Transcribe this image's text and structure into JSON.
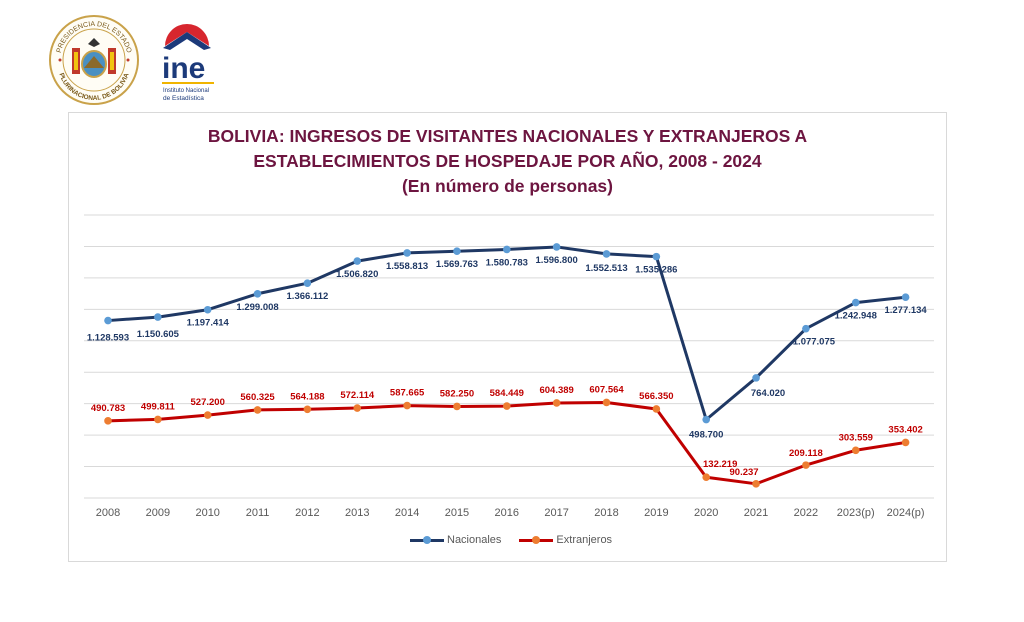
{
  "header": {
    "seal_top_text": "PRESIDENCIA DEL ESTADO",
    "seal_bottom_text": "PLURINACIONAL DE BOLIVIA",
    "ine_logo_text": "ine",
    "ine_subtitle_1": "Instituto Nacional",
    "ine_subtitle_2": "de Estadística"
  },
  "colors": {
    "title": "#6d1540",
    "nacionales_line": "#1f3864",
    "nacionales_marker": "#5b9bd5",
    "extranjeros_line": "#c00000",
    "extranjeros_marker": "#ed7d31",
    "grid": "#d9d9d9"
  },
  "chart_data": {
    "type": "line",
    "title_line1": "BOLIVIA: INGRESOS DE VISITANTES NACIONALES Y EXTRANJEROS A",
    "title_line2": "ESTABLECIMIENTOS DE HOSPEDAJE POR AÑO, 2008 - 2024",
    "subtitle": "(En número de personas)",
    "xlabel": "",
    "ylabel": "",
    "ylim": [
      0,
      1800000
    ],
    "y_grid_step": 200000,
    "grid": true,
    "y_axis_labels_visible": false,
    "legend_position": "bottom",
    "categories": [
      "2008",
      "2009",
      "2010",
      "2011",
      "2012",
      "2013",
      "2014",
      "2015",
      "2016",
      "2017",
      "2018",
      "2019",
      "2020",
      "2021",
      "2022",
      "2023(p)",
      "2024(p)"
    ],
    "series": [
      {
        "name": "Nacionales",
        "values": [
          1128593,
          1150605,
          1197414,
          1299008,
          1366112,
          1506820,
          1558813,
          1569763,
          1580783,
          1596800,
          1552513,
          1535286,
          498700,
          764020,
          1077075,
          1242948,
          1277134
        ],
        "labels": [
          "1.128.593",
          "1.150.605",
          "1.197.414",
          "1.299.008",
          "1.366.112",
          "1.506.820",
          "1.558.813",
          "1.569.763",
          "1.580.783",
          "1.596.800",
          "1.552.513",
          "1.535.286",
          "498.700",
          "764.020",
          "1.077.075",
          "1.242.948",
          "1.277.134"
        ]
      },
      {
        "name": "Extranjeros",
        "values": [
          490783,
          499811,
          527200,
          560325,
          564188,
          572114,
          587665,
          582250,
          584449,
          604389,
          607564,
          566350,
          132219,
          90237,
          209118,
          303559,
          353402
        ],
        "labels": [
          "490.783",
          "499.811",
          "527.200",
          "560.325",
          "564.188",
          "572.114",
          "587.665",
          "582.250",
          "584.449",
          "604.389",
          "607.564",
          "566.350",
          "132.219",
          "90.237",
          "209.118",
          "303.559",
          "353.402"
        ]
      }
    ]
  }
}
